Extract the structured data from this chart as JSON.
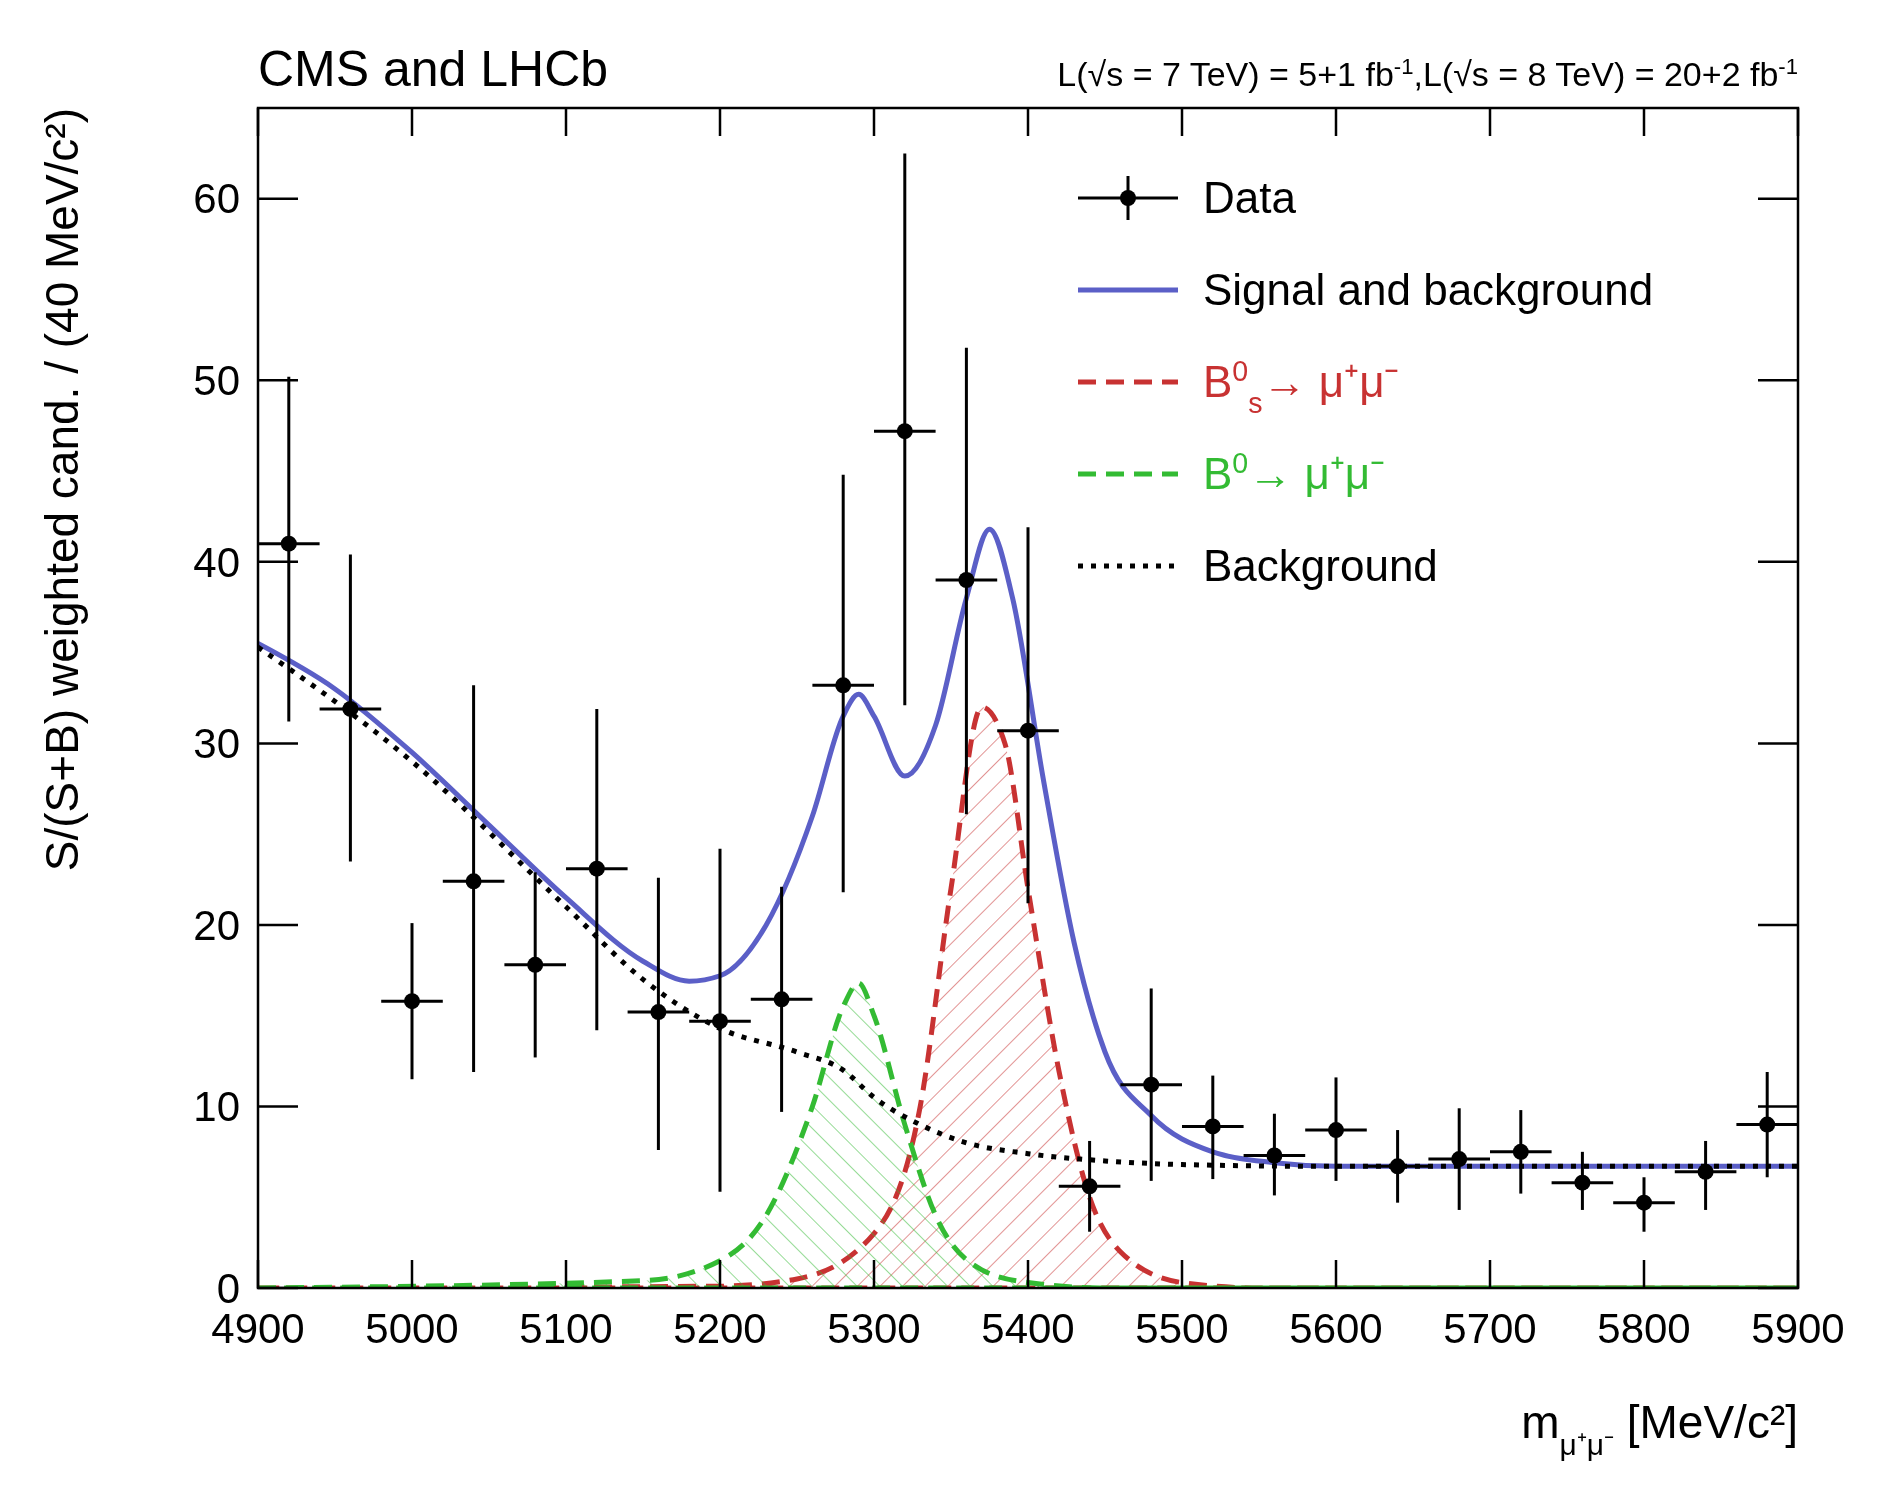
{
  "chart_data": {
    "type": "scatter",
    "title": "CMS and LHCb",
    "subtitle": "L(√s = 7 TeV) = 5+1 fb$^{-1}$,L(√s = 8 TeV) = 20+2 fb$^{-1}$",
    "xlabel": "m$_{μ⁺μ⁻}$ [MeV/c²]",
    "ylabel": "S/(S+B) weighted cand. / (40 MeV/c²)",
    "xlim": [
      4900,
      5900
    ],
    "xticks": [
      4900,
      5000,
      5100,
      5200,
      5300,
      5400,
      5500,
      5600,
      5700,
      5800,
      5900
    ],
    "ylim": [
      0,
      65
    ],
    "yticks": [
      0,
      10,
      20,
      30,
      40,
      50,
      60
    ],
    "grid": false,
    "legend": "top right",
    "series": [
      {
        "name": "Data",
        "color": "#000000",
        "marker": "circle",
        "x": [
          4920,
          4960,
          5000,
          5040,
          5080,
          5120,
          5160,
          5200,
          5240,
          5280,
          5320,
          5360,
          5400,
          5440,
          5480,
          5520,
          5560,
          5600,
          5640,
          5680,
          5720,
          5760,
          5800,
          5840,
          5880
        ],
        "values": [
          41.0,
          31.9,
          15.8,
          22.4,
          17.8,
          23.1,
          15.2,
          14.7,
          15.9,
          33.2,
          47.2,
          39.0,
          30.7,
          5.6,
          11.2,
          8.9,
          7.3,
          8.7,
          6.7,
          7.1,
          7.5,
          5.8,
          4.7,
          6.4,
          9.0
        ],
        "errors": [
          [
            31.2,
            50.2
          ],
          [
            23.5,
            40.4
          ],
          [
            11.5,
            20.1
          ],
          [
            11.9,
            33.2
          ],
          [
            12.7,
            22.9
          ],
          [
            14.2,
            31.9
          ],
          [
            7.6,
            22.6
          ],
          [
            5.3,
            24.2
          ],
          [
            9.7,
            22.1
          ],
          [
            21.8,
            44.8
          ],
          [
            32.1,
            62.5
          ],
          [
            26.1,
            51.8
          ],
          [
            21.2,
            41.9
          ],
          [
            3.1,
            8.1
          ],
          [
            5.9,
            16.5
          ],
          [
            6.0,
            11.7
          ],
          [
            5.1,
            9.6
          ],
          [
            5.9,
            11.6
          ],
          [
            4.7,
            8.7
          ],
          [
            4.3,
            9.9
          ],
          [
            5.2,
            9.8
          ],
          [
            4.3,
            7.5
          ],
          [
            3.1,
            6.1
          ],
          [
            4.3,
            8.1
          ],
          [
            6.1,
            11.9
          ]
        ],
        "xerrors": [
          20,
          20,
          20,
          20,
          20,
          20,
          20,
          20,
          20,
          20,
          20,
          20,
          20,
          20,
          20,
          20,
          20,
          20,
          20,
          20,
          20,
          20,
          20,
          20,
          20
        ]
      },
      {
        "name": "Signal and background",
        "type": "line",
        "color": "#5b5fc7",
        "line_style": "solid",
        "x": [
          4900,
          4950,
          5000,
          5050,
          5100,
          5150,
          5180,
          5200,
          5230,
          5260,
          5280,
          5290,
          5300,
          5320,
          5340,
          5360,
          5375,
          5390,
          5410,
          5430,
          5450,
          5480,
          5520,
          5560,
          5600,
          5900
        ],
        "values": [
          35.5,
          33,
          29.5,
          25.5,
          21.5,
          18,
          16.9,
          17.2,
          20,
          26,
          31.5,
          32.7,
          31.5,
          28.2,
          31,
          38,
          41.8,
          38,
          28,
          19,
          13,
          9.5,
          7.5,
          6.9,
          6.7,
          6.7
        ]
      },
      {
        "name": "B$^{0}$$_{s}$→ μ⁺μ⁻",
        "type": "area",
        "color": "#c83232",
        "line_style": "dashed",
        "x": [
          4900,
          5200,
          5250,
          5300,
          5330,
          5350,
          5370,
          5385,
          5400,
          5420,
          5440,
          5460,
          5500,
          5550,
          5900
        ],
        "values": [
          0,
          0.1,
          0.5,
          3,
          10,
          22,
          32,
          30,
          22,
          12,
          5,
          2,
          0.3,
          0,
          0
        ]
      },
      {
        "name": "B$^{0}$→ μ⁺μ⁻",
        "type": "area",
        "color": "#33bb33",
        "line_style": "dashed",
        "x": [
          4900,
          5150,
          5200,
          5230,
          5260,
          5280,
          5290,
          5300,
          5320,
          5340,
          5370,
          5400,
          5450,
          5900
        ],
        "values": [
          0,
          0.4,
          1.5,
          4,
          10,
          15.5,
          16.8,
          15,
          9,
          4,
          1,
          0.3,
          0,
          0
        ]
      },
      {
        "name": "Background",
        "type": "line",
        "color": "#000000",
        "line_style": "dotted",
        "x": [
          4900,
          5000,
          5100,
          5150,
          5200,
          5250,
          5280,
          5300,
          5330,
          5360,
          5400,
          5450,
          5500,
          5600,
          5900
        ],
        "values": [
          35.3,
          29,
          21,
          17,
          14.3,
          13,
          12,
          10.5,
          9,
          8,
          7.4,
          7,
          6.8,
          6.7,
          6.7
        ]
      }
    ]
  }
}
